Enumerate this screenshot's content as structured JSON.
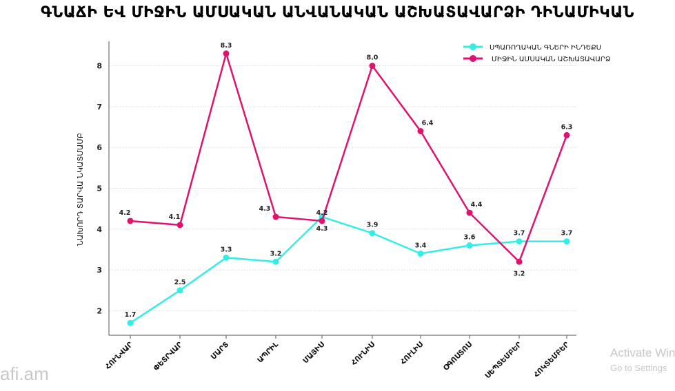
{
  "chart_data": {
    "type": "line",
    "title": "ԳՆԱՃԻ ԵՎ ՄԻՋԻՆ ԱՄՍԱԿԱՆ ԱՆՎԱՆԱԿԱՆ ԱՇԽԱՏԱՎԱՐՁԻ ԴԻՆԱՄԻԿԱՆ",
    "xlabel": "",
    "ylabel": "ՆԱԽՈՐԴ ՏԱՐՎԱ ՆԿԱՏՄԱՄԲ",
    "categories": [
      "ՀՈՒՆՎԱՐ",
      "ՓԵՏՐՎԱՐ",
      "ՄԱՐՏ",
      "ԱՊՐԻԼ",
      "ՄԱՅԻՍ",
      "ՀՈՒՆԻՍ",
      "ՀՈՒԼԻՍ",
      "ՕԳՈՍՏՈՍ",
      "ՍԵՊՏԵՄԲԵՐ",
      "ՀՈԿՏԵՄԲԵՐ"
    ],
    "yticks": [
      2,
      3,
      4,
      5,
      6,
      7,
      8
    ],
    "ylim": [
      1.4,
      8.6
    ],
    "grid": true,
    "legend_position": "top-right",
    "series": [
      {
        "name": "ՍՊԱՌՈՂԱԿԱՆ ԳՆԵՐԻ ԻՆԴԵՔՍ",
        "color": "#33eee6",
        "values": [
          1.7,
          2.5,
          3.3,
          3.2,
          4.3,
          3.9,
          3.4,
          3.6,
          3.7,
          3.7
        ]
      },
      {
        "name": "ՄԻՋԻՆ ԱՄՍԱԿԱՆ ԱՇԽԱՏԱՎԱՐՁ",
        "color": "#e0126e",
        "values": [
          4.2,
          4.1,
          8.3,
          4.3,
          4.2,
          8.0,
          6.4,
          4.4,
          3.2,
          6.3
        ]
      }
    ]
  },
  "watermarks": {
    "logo": "afi.am",
    "activate": "Activate Windows",
    "settings": "Go to Settings"
  }
}
